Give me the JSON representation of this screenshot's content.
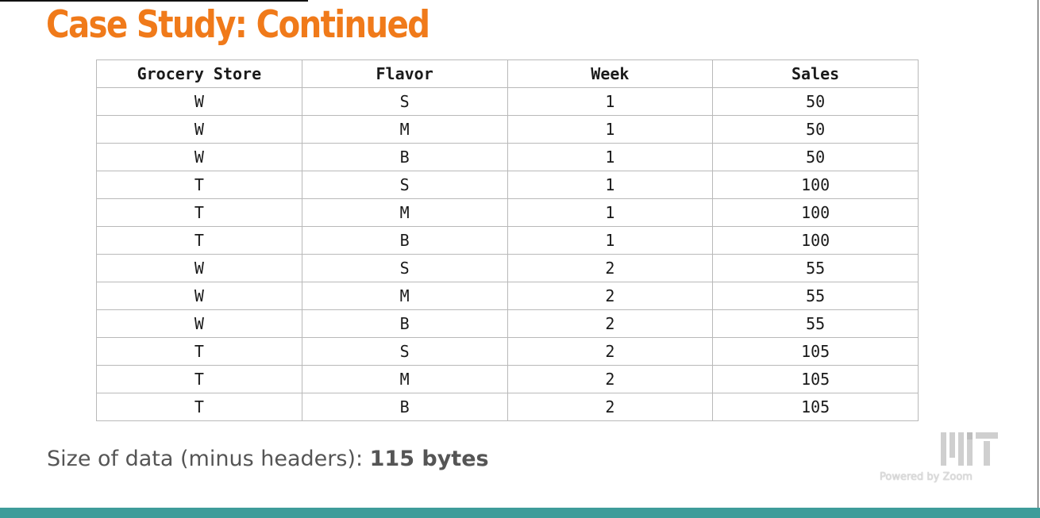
{
  "slide": {
    "title": "Case Study: Continued"
  },
  "table": {
    "headers": [
      "Grocery Store",
      "Flavor",
      "Week",
      "Sales"
    ],
    "rows": [
      [
        "W",
        "S",
        "1",
        "50"
      ],
      [
        "W",
        "M",
        "1",
        "50"
      ],
      [
        "W",
        "B",
        "1",
        "50"
      ],
      [
        "T",
        "S",
        "1",
        "100"
      ],
      [
        "T",
        "M",
        "1",
        "100"
      ],
      [
        "T",
        "B",
        "1",
        "100"
      ],
      [
        "W",
        "S",
        "2",
        "55"
      ],
      [
        "W",
        "M",
        "2",
        "55"
      ],
      [
        "W",
        "B",
        "2",
        "55"
      ],
      [
        "T",
        "S",
        "2",
        "105"
      ],
      [
        "T",
        "M",
        "2",
        "105"
      ],
      [
        "T",
        "B",
        "2",
        "105"
      ]
    ]
  },
  "footer": {
    "label": "Size of data (minus headers): ",
    "value": "115 bytes"
  },
  "watermark": {
    "logo_icon": "mit-logo",
    "text": "Powered by Zoom"
  },
  "colors": {
    "title": "#f07a1a",
    "bottom_bar": "#3e9c9a"
  }
}
